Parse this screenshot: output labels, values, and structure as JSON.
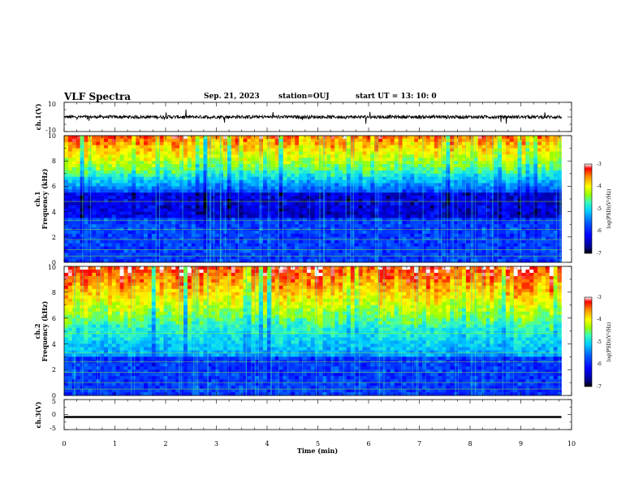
{
  "header": {
    "title": "VLF Spectra",
    "date": "Sep. 21, 2023",
    "station": "station=OUJ",
    "start": "start  UT  =   13: 10: 0"
  },
  "chart_data": [
    {
      "type": "line",
      "panel": "ch1-waveform",
      "ylabel": "ch.1(V)",
      "ylim": [
        -10,
        10
      ],
      "yticks": [
        "10",
        "-10"
      ],
      "xlim": [
        0,
        10
      ],
      "baseline": 0,
      "color": "#000000"
    },
    {
      "type": "heatmap",
      "panel": "ch1-spectrogram",
      "ylabel": "ch.1",
      "ylabel2": "Frequency (kHz)",
      "ylim": [
        0,
        10
      ],
      "yticks": [
        "0",
        "2",
        "4",
        "6",
        "8",
        "10"
      ],
      "xlim": [
        0,
        10
      ],
      "data_end_min": 9.8,
      "colorbar": {
        "label": "log(PSD)(V²/Hz)",
        "ticks": [
          "-3",
          "-4",
          "-5",
          "-6",
          "-7"
        ],
        "range": [
          -7,
          -3
        ]
      }
    },
    {
      "type": "heatmap",
      "panel": "ch2-spectrogram",
      "ylabel": "ch.2",
      "ylabel2": "Frequency (kHz)",
      "ylim": [
        0,
        10
      ],
      "yticks": [
        "0",
        "2",
        "4",
        "6",
        "8",
        "10"
      ],
      "xlim": [
        0,
        10
      ],
      "data_end_min": 9.8,
      "colorbar": {
        "label": "log(PSD)(V²/Hz)",
        "ticks": [
          "-3",
          "-4",
          "-5",
          "-6",
          "-7"
        ],
        "range": [
          -7,
          -3
        ]
      }
    },
    {
      "type": "line",
      "panel": "ch3-waveform",
      "ylabel": "ch.3(V)",
      "ylim": [
        -5,
        5
      ],
      "yticks": [
        "5",
        "0",
        "-5"
      ],
      "xlim": [
        0,
        10
      ],
      "baseline": -0.8,
      "color": "#000000",
      "xlabel": "Time (min)",
      "xticks": [
        "0",
        "1",
        "2",
        "3",
        "4",
        "5",
        "6",
        "7",
        "8",
        "9",
        "10"
      ]
    }
  ],
  "colors": {
    "colormap": [
      "#000000",
      "#00008c",
      "#0000ff",
      "#0060ff",
      "#00d4ff",
      "#40ffb0",
      "#9cff00",
      "#ffff00",
      "#ff8c00",
      "#ff0000",
      "#ffffff"
    ]
  }
}
